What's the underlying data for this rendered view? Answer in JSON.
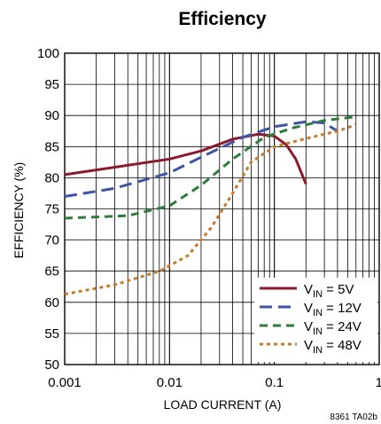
{
  "chart_data": {
    "type": "line",
    "title": "Efficiency",
    "xlabel": "LOAD CURRENT (A)",
    "ylabel": "EFFICIENCY (%)",
    "xscale": "log",
    "xlim": [
      0.001,
      1
    ],
    "ylim": [
      50,
      100
    ],
    "grid": true,
    "x_tick_labels": [
      "0.001",
      "0.01",
      "0.1",
      "1"
    ],
    "y_tick_labels": [
      "50",
      "55",
      "60",
      "65",
      "70",
      "75",
      "80",
      "85",
      "90",
      "95",
      "100"
    ],
    "legend_position": "bottom-right",
    "note": "8361 TA02b",
    "series": [
      {
        "name_main": "V",
        "name_sub": "IN",
        "name_tail": " = 5V",
        "color": "#8c1a2e",
        "dash": "solid",
        "points": [
          [
            0.001,
            80.5
          ],
          [
            0.003,
            81.7
          ],
          [
            0.01,
            83.0
          ],
          [
            0.02,
            84.3
          ],
          [
            0.04,
            86.2
          ],
          [
            0.07,
            87.0
          ],
          [
            0.1,
            86.7
          ],
          [
            0.13,
            85.3
          ],
          [
            0.16,
            83.0
          ],
          [
            0.2,
            79.0
          ]
        ]
      },
      {
        "name_main": "V",
        "name_sub": "IN",
        "name_tail": " = 12V",
        "color": "#3d56a3",
        "dash": "long",
        "points": [
          [
            0.001,
            77.0
          ],
          [
            0.003,
            78.3
          ],
          [
            0.01,
            80.8
          ],
          [
            0.02,
            83.3
          ],
          [
            0.05,
            86.5
          ],
          [
            0.1,
            88.2
          ],
          [
            0.2,
            89.0
          ],
          [
            0.3,
            88.8
          ],
          [
            0.4,
            87.5
          ]
        ]
      },
      {
        "name_main": "V",
        "name_sub": "IN",
        "name_tail": " = 24V",
        "color": "#2e7d3c",
        "dash": "medium",
        "points": [
          [
            0.001,
            73.5
          ],
          [
            0.004,
            73.9
          ],
          [
            0.01,
            75.5
          ],
          [
            0.02,
            78.8
          ],
          [
            0.04,
            83.0
          ],
          [
            0.08,
            86.5
          ],
          [
            0.15,
            88.0
          ],
          [
            0.3,
            89.2
          ],
          [
            0.6,
            89.8
          ]
        ]
      },
      {
        "name_main": "V",
        "name_sub": "IN",
        "name_tail": " = 48V",
        "color": "#c77a2c",
        "dash": "dot",
        "points": [
          [
            0.001,
            61.3
          ],
          [
            0.003,
            62.8
          ],
          [
            0.008,
            65.0
          ],
          [
            0.015,
            67.5
          ],
          [
            0.025,
            72.0
          ],
          [
            0.04,
            77.5
          ],
          [
            0.06,
            82.5
          ],
          [
            0.1,
            85.0
          ],
          [
            0.2,
            86.3
          ],
          [
            0.4,
            87.5
          ],
          [
            0.6,
            88.5
          ]
        ]
      }
    ]
  }
}
